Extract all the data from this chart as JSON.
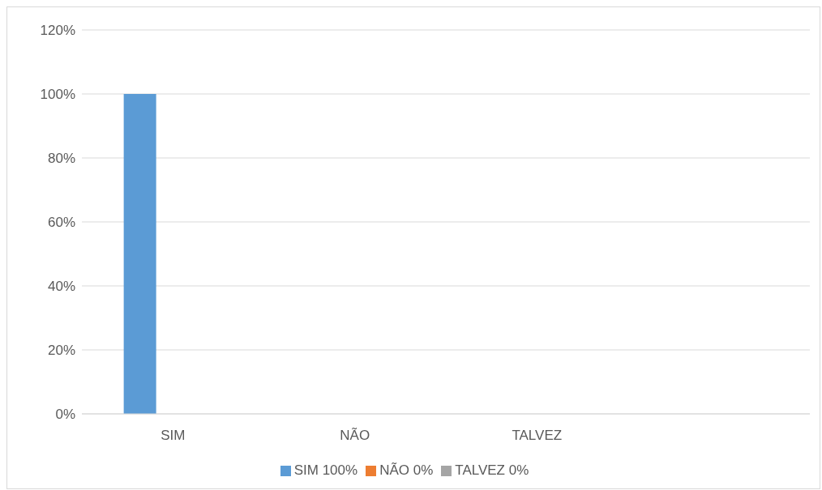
{
  "chart_data": {
    "type": "bar",
    "categories": [
      "SIM",
      "NÃO",
      "TALVEZ",
      null
    ],
    "series": [
      {
        "name": "SIM 100%",
        "color": "#5b9bd5",
        "values": [
          100,
          null,
          null,
          null
        ]
      },
      {
        "name": "NÃO 0%",
        "color": "#ed7d31",
        "values": [
          null,
          0,
          null,
          null
        ]
      },
      {
        "name": "TALVEZ 0%",
        "color": "#a5a5a5",
        "values": [
          null,
          null,
          0,
          null
        ]
      }
    ],
    "ylim": [
      0,
      120
    ],
    "yticks": [
      {
        "value": 0,
        "label": "0%"
      },
      {
        "value": 20,
        "label": "20%"
      },
      {
        "value": 40,
        "label": "40%"
      },
      {
        "value": 60,
        "label": "60%"
      },
      {
        "value": 80,
        "label": "80%"
      },
      {
        "value": 100,
        "label": "100%"
      },
      {
        "value": 120,
        "label": "120%"
      }
    ],
    "grid": "y",
    "legend": "bottom"
  }
}
